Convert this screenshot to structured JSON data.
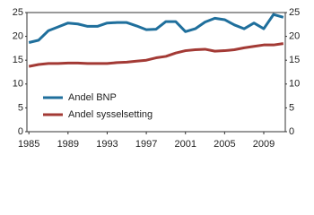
{
  "chart_data": {
    "type": "line",
    "x": [
      1985,
      1986,
      1987,
      1988,
      1989,
      1990,
      1991,
      1992,
      1993,
      1994,
      1995,
      1996,
      1997,
      1998,
      1999,
      2000,
      2001,
      2002,
      2003,
      2004,
      2005,
      2006,
      2007,
      2008,
      2009,
      2010,
      2011
    ],
    "series": [
      {
        "name": "Andel BNP",
        "color": "#1f6f9c",
        "values": [
          18.7,
          19.2,
          21.2,
          22.0,
          22.8,
          22.6,
          22.1,
          22.1,
          22.8,
          22.9,
          22.9,
          22.2,
          21.4,
          21.5,
          23.1,
          23.1,
          21.0,
          21.6,
          23.0,
          23.8,
          23.5,
          22.4,
          21.6,
          22.8,
          21.6,
          24.6,
          24.0
        ]
      },
      {
        "name": "Andel sysselsetting",
        "color": "#a33a35",
        "values": [
          13.7,
          14.1,
          14.3,
          14.3,
          14.4,
          14.4,
          14.3,
          14.3,
          14.3,
          14.5,
          14.6,
          14.8,
          15.0,
          15.5,
          15.8,
          16.5,
          17.0,
          17.2,
          17.3,
          16.9,
          17.0,
          17.2,
          17.6,
          17.9,
          18.2,
          18.2,
          18.5
        ]
      }
    ],
    "xlim": [
      1984.8,
      2011.2
    ],
    "xticks": [
      1985,
      1989,
      1993,
      1997,
      2001,
      2005,
      2009
    ],
    "ylim": [
      0,
      25
    ],
    "yticks": [
      0,
      5,
      10,
      15,
      20,
      25
    ],
    "y2lim": [
      0,
      25
    ],
    "y2ticks": [
      0,
      5,
      10,
      15,
      20,
      25
    ],
    "legend": "lower-left"
  }
}
